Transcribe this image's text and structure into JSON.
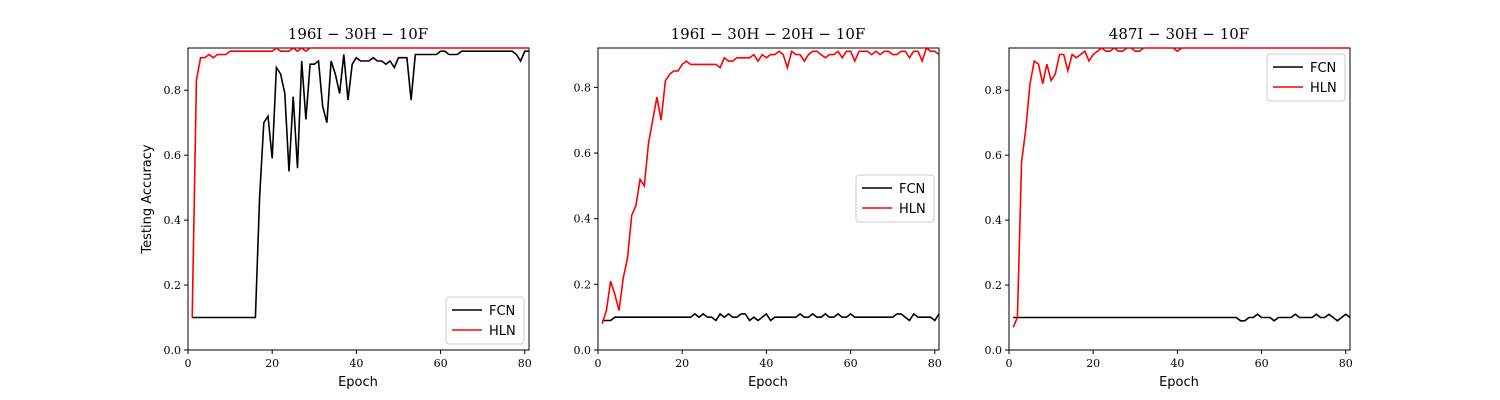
{
  "chart_data": [
    {
      "type": "line",
      "title": "196I − 30H − 10F",
      "xlabel": "Epoch",
      "ylabel": "Testing Accuracy",
      "xlim": [
        0,
        81
      ],
      "ylim": [
        0.0,
        0.93
      ],
      "xticks": [
        "0",
        "20",
        "40",
        "60",
        "80"
      ],
      "yticks": [
        "0.0",
        "0.2",
        "0.4",
        "0.6",
        "0.8"
      ],
      "legend_position": "lower-right",
      "series": [
        {
          "name": "FCN",
          "color": "#000000",
          "x": [
            1,
            2,
            3,
            4,
            5,
            6,
            7,
            8,
            9,
            10,
            11,
            12,
            13,
            14,
            15,
            16,
            17,
            18,
            19,
            20,
            21,
            22,
            23,
            24,
            25,
            26,
            27,
            28,
            29,
            30,
            31,
            32,
            33,
            34,
            35,
            36,
            37,
            38,
            39,
            40,
            41,
            42,
            43,
            44,
            45,
            46,
            47,
            48,
            49,
            50,
            51,
            52,
            53,
            54,
            55,
            56,
            57,
            58,
            59,
            60,
            61,
            62,
            63,
            64,
            65,
            66,
            67,
            68,
            69,
            70,
            71,
            72,
            73,
            74,
            75,
            76,
            77,
            78,
            79,
            80,
            81
          ],
          "y": [
            0.1,
            0.1,
            0.1,
            0.1,
            0.1,
            0.1,
            0.1,
            0.1,
            0.1,
            0.1,
            0.1,
            0.1,
            0.1,
            0.1,
            0.1,
            0.1,
            0.47,
            0.7,
            0.72,
            0.59,
            0.87,
            0.85,
            0.79,
            0.55,
            0.78,
            0.56,
            0.89,
            0.71,
            0.88,
            0.88,
            0.89,
            0.75,
            0.7,
            0.89,
            0.85,
            0.79,
            0.91,
            0.77,
            0.88,
            0.9,
            0.89,
            0.89,
            0.89,
            0.9,
            0.89,
            0.89,
            0.88,
            0.89,
            0.87,
            0.9,
            0.9,
            0.9,
            0.77,
            0.91,
            0.91,
            0.91,
            0.91,
            0.91,
            0.91,
            0.92,
            0.92,
            0.91,
            0.91,
            0.91,
            0.92,
            0.92,
            0.92,
            0.92,
            0.92,
            0.92,
            0.92,
            0.92,
            0.92,
            0.92,
            0.92,
            0.92,
            0.92,
            0.91,
            0.89,
            0.92,
            0.92
          ]
        },
        {
          "name": "HLN",
          "color": "#ff0000",
          "x": [
            1,
            2,
            3,
            4,
            5,
            6,
            7,
            8,
            9,
            10,
            11,
            12,
            13,
            14,
            15,
            16,
            17,
            18,
            19,
            20,
            21,
            22,
            23,
            24,
            25,
            26,
            27,
            28,
            29,
            30,
            31,
            32,
            33,
            34,
            35,
            36,
            37,
            38,
            39,
            40,
            41,
            42,
            43,
            44,
            45,
            46,
            47,
            48,
            49,
            50,
            51,
            52,
            53,
            54,
            55,
            56,
            57,
            58,
            59,
            60,
            61,
            62,
            63,
            64,
            65,
            66,
            67,
            68,
            69,
            70,
            71,
            72,
            73,
            74,
            75,
            76,
            77,
            78,
            79,
            80,
            81
          ],
          "y": [
            0.1,
            0.83,
            0.9,
            0.9,
            0.91,
            0.9,
            0.91,
            0.91,
            0.91,
            0.92,
            0.92,
            0.92,
            0.92,
            0.92,
            0.92,
            0.92,
            0.92,
            0.92,
            0.92,
            0.92,
            0.93,
            0.92,
            0.92,
            0.92,
            0.93,
            0.92,
            0.93,
            0.92,
            0.93,
            0.93,
            0.93,
            0.93,
            0.93,
            0.93,
            0.93,
            0.93,
            0.93,
            0.93,
            0.93,
            0.93,
            0.93,
            0.93,
            0.93,
            0.93,
            0.93,
            0.93,
            0.93,
            0.93,
            0.93,
            0.93,
            0.93,
            0.93,
            0.93,
            0.93,
            0.93,
            0.93,
            0.93,
            0.93,
            0.93,
            0.93,
            0.93,
            0.93,
            0.93,
            0.93,
            0.93,
            0.93,
            0.93,
            0.93,
            0.93,
            0.93,
            0.93,
            0.93,
            0.93,
            0.93,
            0.93,
            0.93,
            0.93,
            0.93,
            0.93,
            0.93,
            0.93
          ]
        }
      ]
    },
    {
      "type": "line",
      "title": "196I − 30H − 20H − 10F",
      "xlabel": "Epoch",
      "ylabel": "",
      "xlim": [
        0,
        81
      ],
      "ylim": [
        0.0,
        0.92
      ],
      "xticks": [
        "0",
        "20",
        "40",
        "60",
        "80"
      ],
      "yticks": [
        "0.0",
        "0.2",
        "0.4",
        "0.6",
        "0.8"
      ],
      "legend_position": "center-right",
      "series": [
        {
          "name": "FCN",
          "color": "#000000",
          "x": [
            1,
            2,
            3,
            4,
            5,
            6,
            7,
            8,
            9,
            10,
            11,
            12,
            13,
            14,
            15,
            16,
            17,
            18,
            19,
            20,
            21,
            22,
            23,
            24,
            25,
            26,
            27,
            28,
            29,
            30,
            31,
            32,
            33,
            34,
            35,
            36,
            37,
            38,
            39,
            40,
            41,
            42,
            43,
            44,
            45,
            46,
            47,
            48,
            49,
            50,
            51,
            52,
            53,
            54,
            55,
            56,
            57,
            58,
            59,
            60,
            61,
            62,
            63,
            64,
            65,
            66,
            67,
            68,
            69,
            70,
            71,
            72,
            73,
            74,
            75,
            76,
            77,
            78,
            79,
            80,
            81
          ],
          "y": [
            0.09,
            0.09,
            0.09,
            0.1,
            0.1,
            0.1,
            0.1,
            0.1,
            0.1,
            0.1,
            0.1,
            0.1,
            0.1,
            0.1,
            0.1,
            0.1,
            0.1,
            0.1,
            0.1,
            0.1,
            0.1,
            0.1,
            0.11,
            0.1,
            0.11,
            0.1,
            0.1,
            0.09,
            0.11,
            0.1,
            0.11,
            0.1,
            0.1,
            0.11,
            0.11,
            0.09,
            0.1,
            0.09,
            0.1,
            0.11,
            0.09,
            0.1,
            0.1,
            0.1,
            0.1,
            0.1,
            0.1,
            0.11,
            0.1,
            0.1,
            0.11,
            0.1,
            0.1,
            0.11,
            0.1,
            0.1,
            0.11,
            0.1,
            0.1,
            0.11,
            0.1,
            0.1,
            0.1,
            0.1,
            0.1,
            0.1,
            0.1,
            0.1,
            0.1,
            0.1,
            0.11,
            0.11,
            0.1,
            0.09,
            0.11,
            0.1,
            0.1,
            0.1,
            0.1,
            0.09,
            0.11
          ]
        },
        {
          "name": "HLN",
          "color": "#ff0000",
          "x": [
            1,
            2,
            3,
            4,
            5,
            6,
            7,
            8,
            9,
            10,
            11,
            12,
            13,
            14,
            15,
            16,
            17,
            18,
            19,
            20,
            21,
            22,
            23,
            24,
            25,
            26,
            27,
            28,
            29,
            30,
            31,
            32,
            33,
            34,
            35,
            36,
            37,
            38,
            39,
            40,
            41,
            42,
            43,
            44,
            45,
            46,
            47,
            48,
            49,
            50,
            51,
            52,
            53,
            54,
            55,
            56,
            57,
            58,
            59,
            60,
            61,
            62,
            63,
            64,
            65,
            66,
            67,
            68,
            69,
            70,
            71,
            72,
            73,
            74,
            75,
            76,
            77,
            78,
            79,
            80,
            81
          ],
          "y": [
            0.08,
            0.12,
            0.21,
            0.17,
            0.12,
            0.22,
            0.28,
            0.41,
            0.44,
            0.52,
            0.5,
            0.63,
            0.7,
            0.77,
            0.7,
            0.82,
            0.84,
            0.85,
            0.85,
            0.87,
            0.88,
            0.87,
            0.87,
            0.87,
            0.87,
            0.87,
            0.87,
            0.87,
            0.86,
            0.89,
            0.88,
            0.88,
            0.89,
            0.89,
            0.89,
            0.89,
            0.9,
            0.88,
            0.9,
            0.89,
            0.9,
            0.9,
            0.91,
            0.9,
            0.86,
            0.91,
            0.9,
            0.9,
            0.88,
            0.9,
            0.91,
            0.91,
            0.9,
            0.89,
            0.9,
            0.9,
            0.91,
            0.89,
            0.91,
            0.91,
            0.88,
            0.91,
            0.91,
            0.91,
            0.9,
            0.91,
            0.9,
            0.91,
            0.91,
            0.9,
            0.9,
            0.91,
            0.91,
            0.89,
            0.91,
            0.91,
            0.88,
            0.92,
            0.91,
            0.91,
            0.9
          ]
        }
      ]
    },
    {
      "type": "line",
      "title": "487I − 30H − 10F",
      "xlabel": "Epoch",
      "ylabel": "",
      "xlim": [
        0,
        81
      ],
      "ylim": [
        0.0,
        0.93
      ],
      "xticks": [
        "0",
        "20",
        "40",
        "60",
        "80"
      ],
      "yticks": [
        "0.0",
        "0.2",
        "0.4",
        "0.6",
        "0.8"
      ],
      "legend_position": "top-right",
      "series": [
        {
          "name": "FCN",
          "color": "#000000",
          "x": [
            1,
            2,
            3,
            4,
            5,
            6,
            7,
            8,
            9,
            10,
            11,
            12,
            13,
            14,
            15,
            16,
            17,
            18,
            19,
            20,
            21,
            22,
            23,
            24,
            25,
            26,
            27,
            28,
            29,
            30,
            31,
            32,
            33,
            34,
            35,
            36,
            37,
            38,
            39,
            40,
            41,
            42,
            43,
            44,
            45,
            46,
            47,
            48,
            49,
            50,
            51,
            52,
            53,
            54,
            55,
            56,
            57,
            58,
            59,
            60,
            61,
            62,
            63,
            64,
            65,
            66,
            67,
            68,
            69,
            70,
            71,
            72,
            73,
            74,
            75,
            76,
            77,
            78,
            79,
            80,
            81
          ],
          "y": [
            0.1,
            0.1,
            0.1,
            0.1,
            0.1,
            0.1,
            0.1,
            0.1,
            0.1,
            0.1,
            0.1,
            0.1,
            0.1,
            0.1,
            0.1,
            0.1,
            0.1,
            0.1,
            0.1,
            0.1,
            0.1,
            0.1,
            0.1,
            0.1,
            0.1,
            0.1,
            0.1,
            0.1,
            0.1,
            0.1,
            0.1,
            0.1,
            0.1,
            0.1,
            0.1,
            0.1,
            0.1,
            0.1,
            0.1,
            0.1,
            0.1,
            0.1,
            0.1,
            0.1,
            0.1,
            0.1,
            0.1,
            0.1,
            0.1,
            0.1,
            0.1,
            0.1,
            0.1,
            0.1,
            0.09,
            0.09,
            0.1,
            0.1,
            0.11,
            0.1,
            0.1,
            0.1,
            0.09,
            0.1,
            0.1,
            0.1,
            0.1,
            0.11,
            0.1,
            0.1,
            0.1,
            0.1,
            0.11,
            0.1,
            0.1,
            0.11,
            0.1,
            0.09,
            0.1,
            0.11,
            0.1
          ]
        },
        {
          "name": "HLN",
          "color": "#ff0000",
          "x": [
            1,
            2,
            3,
            4,
            5,
            6,
            7,
            8,
            9,
            10,
            11,
            12,
            13,
            14,
            15,
            16,
            17,
            18,
            19,
            20,
            21,
            22,
            23,
            24,
            25,
            26,
            27,
            28,
            29,
            30,
            31,
            32,
            33,
            34,
            35,
            36,
            37,
            38,
            39,
            40,
            41,
            42,
            43,
            44,
            45,
            46,
            47,
            48,
            49,
            50,
            51,
            52,
            53,
            54,
            55,
            56,
            57,
            58,
            59,
            60,
            61,
            62,
            63,
            64,
            65,
            66,
            67,
            68,
            69,
            70,
            71,
            72,
            73,
            74,
            75,
            76,
            77,
            78,
            79,
            80,
            81
          ],
          "y": [
            0.07,
            0.1,
            0.58,
            0.68,
            0.82,
            0.89,
            0.88,
            0.82,
            0.88,
            0.83,
            0.85,
            0.91,
            0.91,
            0.86,
            0.91,
            0.9,
            0.91,
            0.92,
            0.89,
            0.91,
            0.92,
            0.93,
            0.92,
            0.92,
            0.93,
            0.92,
            0.92,
            0.93,
            0.93,
            0.92,
            0.92,
            0.93,
            0.93,
            0.93,
            0.93,
            0.93,
            0.93,
            0.93,
            0.93,
            0.92,
            0.93,
            0.93,
            0.93,
            0.93,
            0.93,
            0.93,
            0.93,
            0.93,
            0.93,
            0.93,
            0.93,
            0.93,
            0.93,
            0.93,
            0.93,
            0.93,
            0.93,
            0.93,
            0.93,
            0.93,
            0.93,
            0.93,
            0.93,
            0.93,
            0.93,
            0.93,
            0.93,
            0.93,
            0.93,
            0.93,
            0.93,
            0.93,
            0.93,
            0.93,
            0.93,
            0.93,
            0.93,
            0.93,
            0.93,
            0.93,
            0.93
          ]
        }
      ]
    }
  ]
}
